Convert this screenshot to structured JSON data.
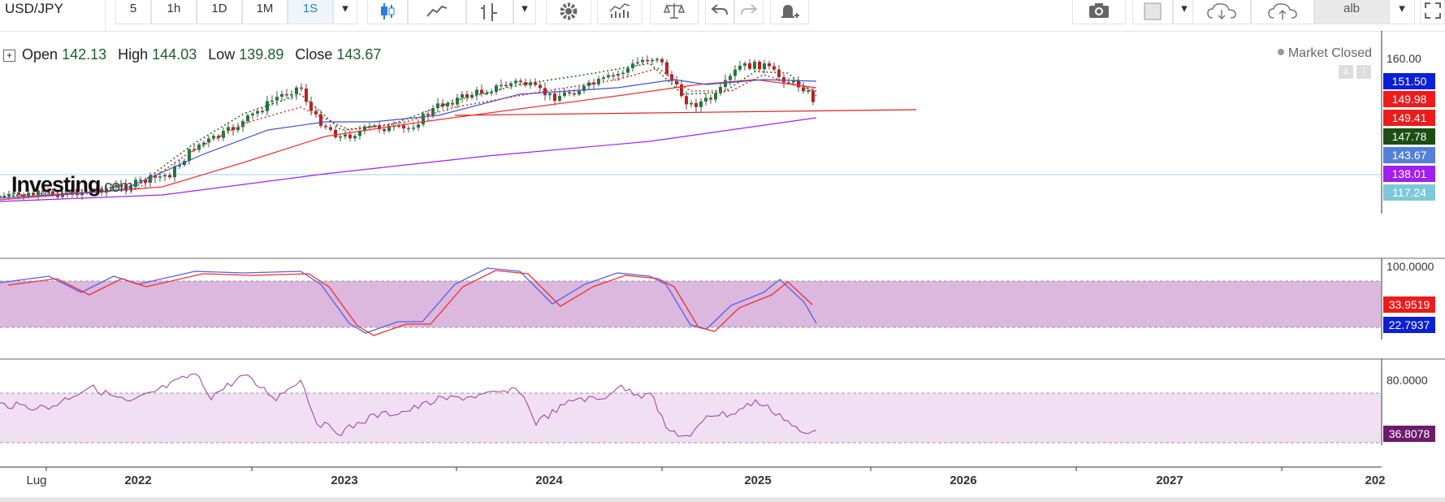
{
  "toolbar": {
    "symbol": "USD/JPY",
    "timeframes": [
      "5",
      "1h",
      "1D",
      "1M",
      "1S"
    ],
    "active_timeframe": "1S",
    "account_label": "alb"
  },
  "ohlc": {
    "open_label": "Open",
    "open": "142.13",
    "high_label": "High",
    "high": "144.03",
    "low_label": "Low",
    "low": "139.89",
    "close_label": "Close",
    "close": "143.67"
  },
  "market_status": "Market Closed",
  "logo": {
    "main": "Investing",
    "suffix": ".com"
  },
  "price_axis": {
    "top_label": "160.00",
    "tags": [
      {
        "value": "151.50",
        "color": "#0b1fd6"
      },
      {
        "value": "149.98",
        "color": "#ee1b1b"
      },
      {
        "value": "149.41",
        "color": "#ee1b1b"
      },
      {
        "value": "147.78",
        "color": "#1e4d14"
      },
      {
        "value": "143.67",
        "color": "#5580d8"
      },
      {
        "value": "138.01",
        "color": "#a020f0"
      },
      {
        "value": "117.24",
        "color": "#7ec8d8"
      }
    ]
  },
  "stochastic": {
    "top_label": "100.0000",
    "tags": [
      {
        "value": "33.9519",
        "color": "#ee1b1b"
      },
      {
        "value": "22.7937",
        "color": "#0b1fd6"
      }
    ]
  },
  "rsi": {
    "top_label": "80.0000",
    "tags": [
      {
        "value": "36.8078",
        "color": "#6c1a6c"
      }
    ]
  },
  "x_axis": [
    "Lug",
    "2022",
    "2023",
    "2024",
    "2025",
    "2026",
    "2027",
    "202"
  ],
  "colors": {
    "accent": "#2a7fd4",
    "up_candle": "#1e7a3a",
    "down_candle": "#c01e1e"
  }
}
